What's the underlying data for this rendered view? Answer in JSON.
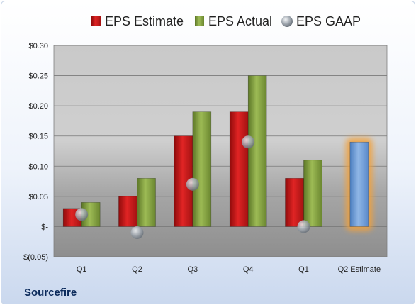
{
  "company": "Sourcefire",
  "chart_data": {
    "type": "bar",
    "categories": [
      "Q1",
      "Q2",
      "Q3",
      "Q4",
      "Q1",
      "Q2 Estimate"
    ],
    "series": [
      {
        "name": "EPS Estimate",
        "kind": "bar",
        "color": "#d01a1a",
        "values": [
          0.03,
          0.05,
          0.15,
          0.19,
          0.08,
          null
        ]
      },
      {
        "name": "EPS Actual",
        "kind": "bar",
        "color": "#8aa744",
        "values": [
          0.04,
          0.08,
          0.19,
          0.25,
          0.11,
          null
        ]
      },
      {
        "name": "EPS GAAP",
        "kind": "marker",
        "color": "#9aa3ad",
        "values": [
          0.02,
          -0.01,
          0.07,
          0.14,
          0.0,
          null
        ]
      },
      {
        "name": "",
        "kind": "bar",
        "color": "#6f9fd6",
        "values": [
          null,
          null,
          null,
          null,
          null,
          0.14
        ]
      }
    ],
    "ylim": [
      -0.05,
      0.3
    ],
    "yticks": [
      {
        "value": -0.05,
        "label": "$(0.05)"
      },
      {
        "value": 0.0,
        "label": "$-"
      },
      {
        "value": 0.05,
        "label": "$0.05"
      },
      {
        "value": 0.1,
        "label": "$0.10"
      },
      {
        "value": 0.15,
        "label": "$0.15"
      },
      {
        "value": 0.2,
        "label": "$0.20"
      },
      {
        "value": 0.25,
        "label": "$0.25"
      },
      {
        "value": 0.3,
        "label": "$0.30"
      }
    ],
    "grid": true,
    "legend_position": "top",
    "highlight_color": "#f2a13a"
  }
}
